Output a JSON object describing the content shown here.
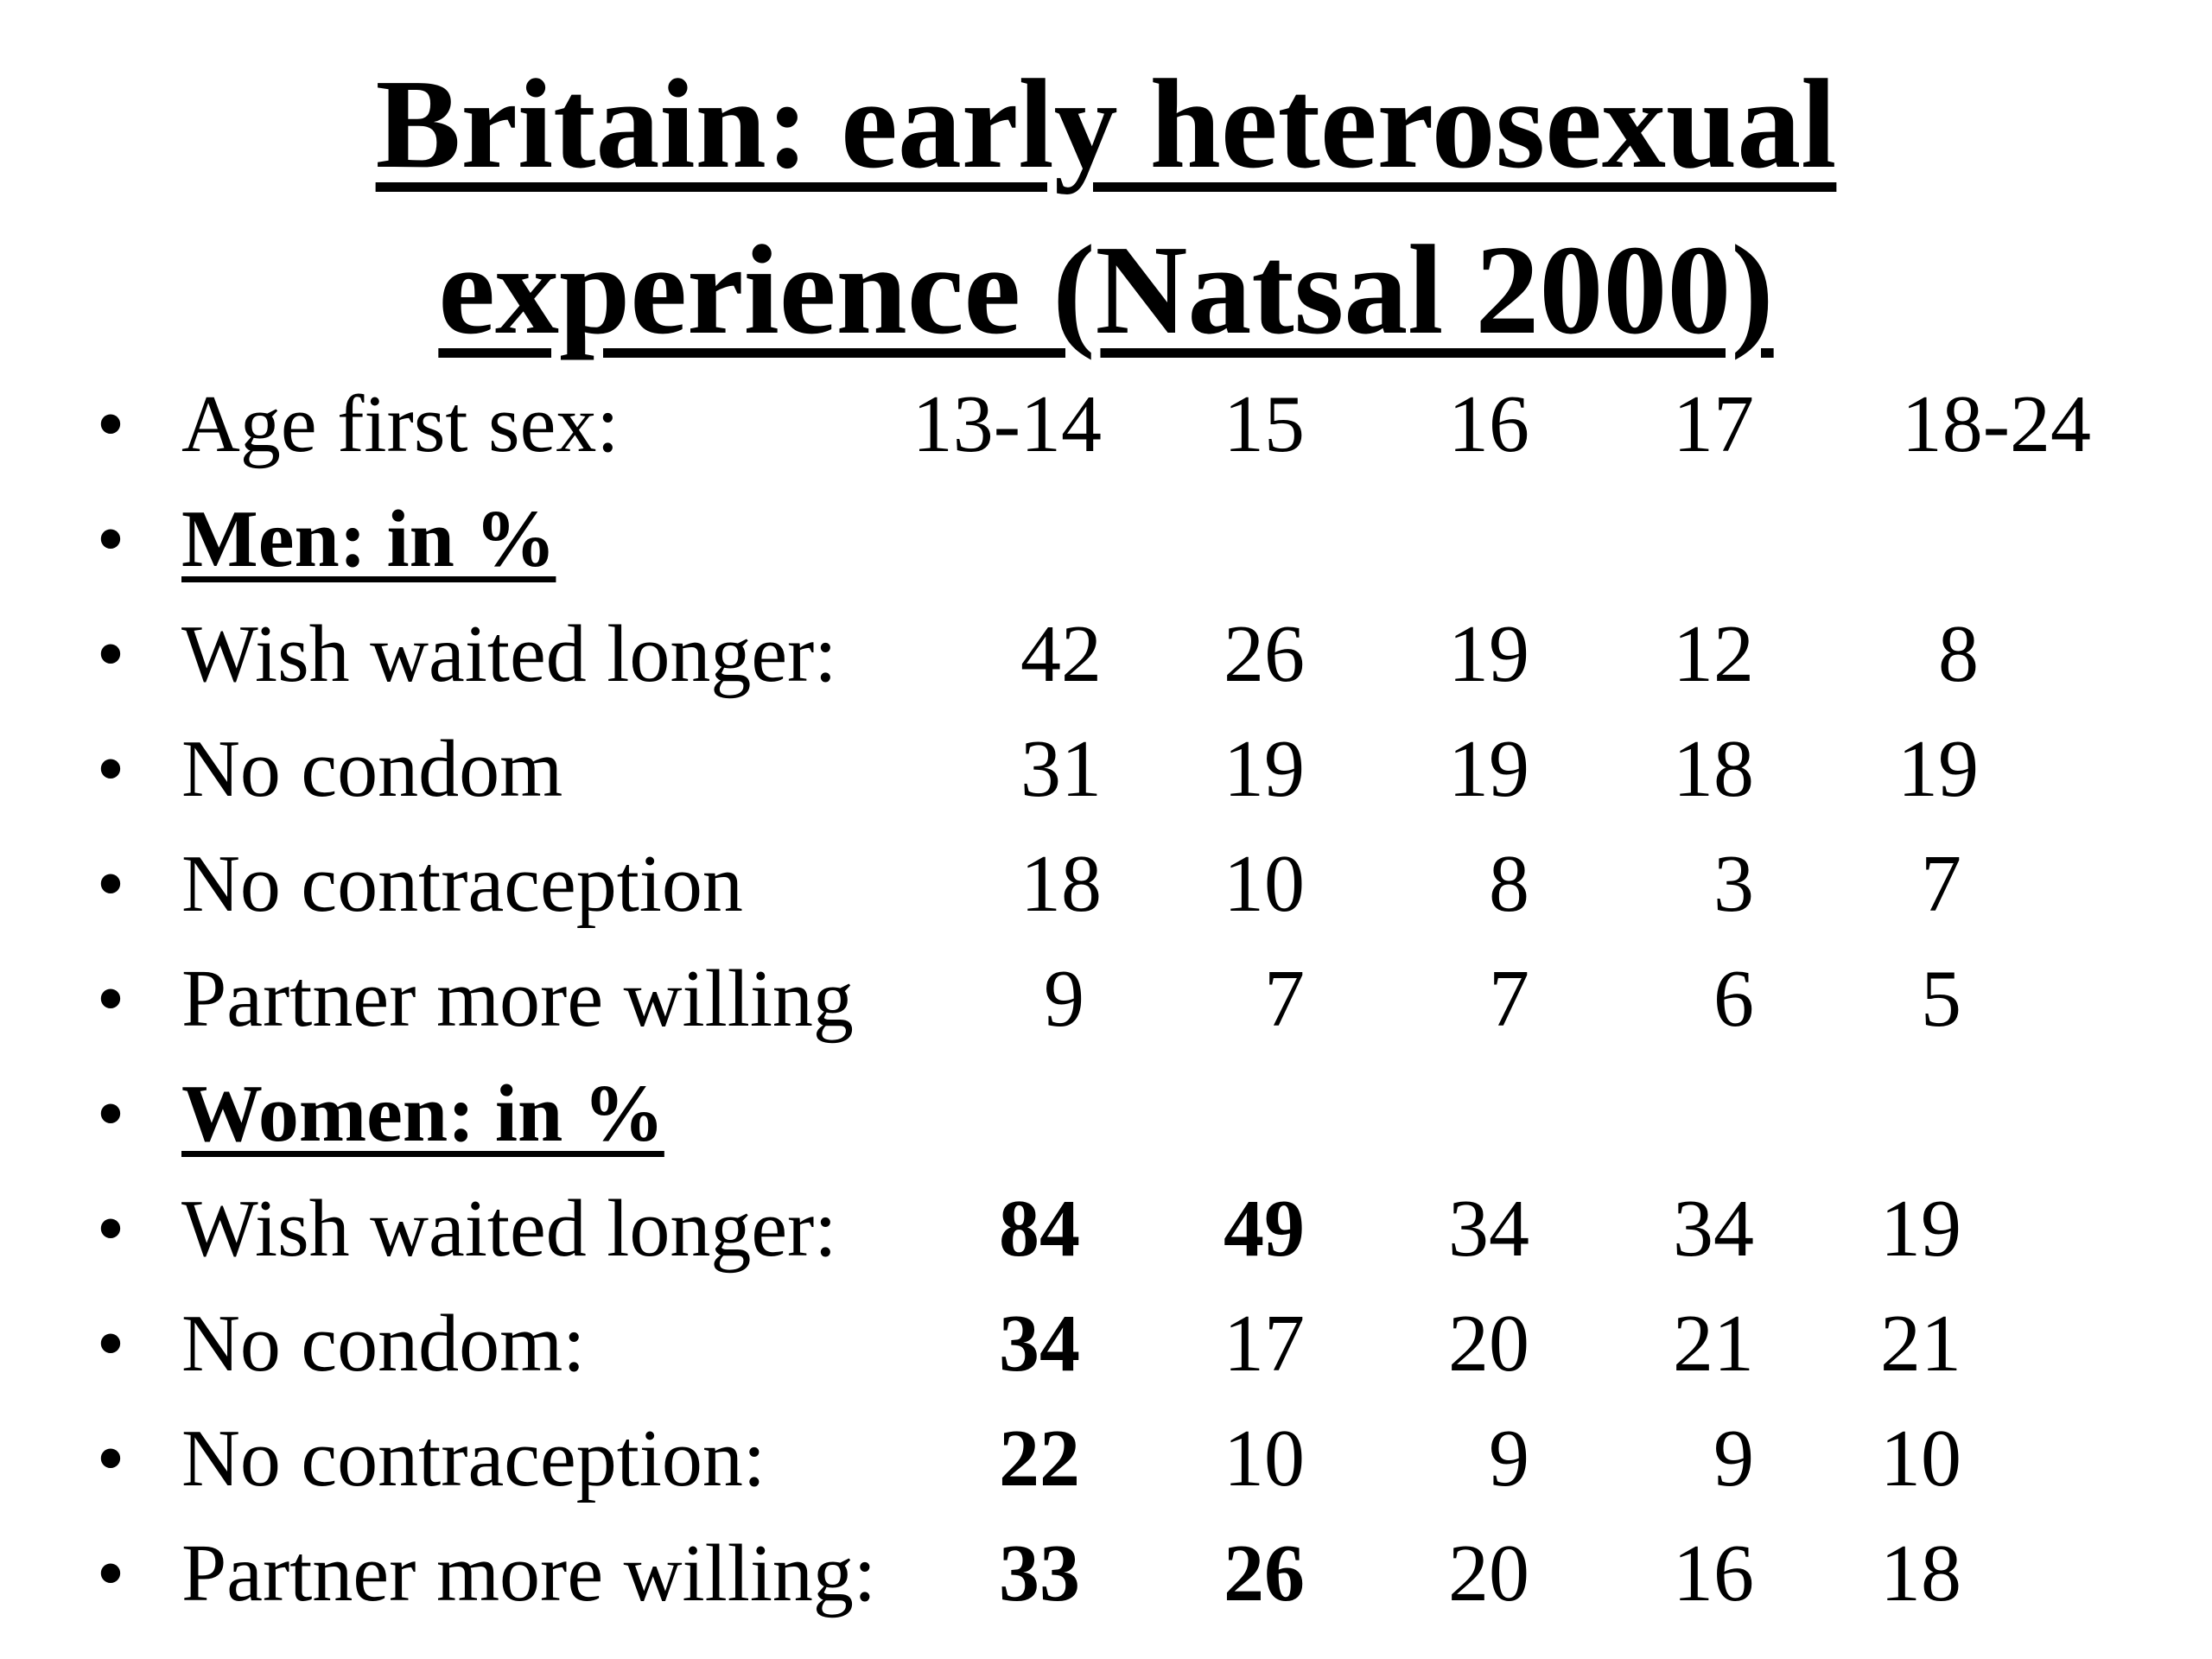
{
  "title": {
    "line1": "Britain: early heterosexual",
    "line2": "experience (Natsal 2000)"
  },
  "bullet": "•",
  "header": {
    "label": "Age first sex:",
    "columns": [
      "13-14",
      "15",
      "16",
      "17",
      "18-24"
    ]
  },
  "men": {
    "heading": "Men: in %",
    "rows": [
      {
        "label": "Wish waited longer:",
        "values": [
          "42",
          "26",
          "19",
          "12",
          "8"
        ]
      },
      {
        "label": "No condom",
        "values": [
          "31",
          "19",
          "19",
          "18",
          "19"
        ]
      },
      {
        "label": "No contraception",
        "values": [
          "18",
          "10",
          "8",
          "3",
          "7"
        ]
      },
      {
        "label": "Partner more willing",
        "values": [
          "9",
          "7",
          "7",
          "6",
          "5"
        ]
      }
    ]
  },
  "women": {
    "heading": "Women: in %",
    "rows": [
      {
        "label": "Wish waited longer:",
        "values": [
          "84",
          "49",
          "34",
          "34",
          "19"
        ]
      },
      {
        "label": "No condom:",
        "values": [
          "34",
          "17",
          "20",
          "21",
          "21"
        ]
      },
      {
        "label": "No contraception:",
        "values": [
          "22",
          "10",
          "9",
          "9",
          "10"
        ]
      },
      {
        "label": "Partner more willing:",
        "values": [
          "33",
          "26",
          "20",
          "16",
          "18"
        ]
      }
    ]
  }
}
